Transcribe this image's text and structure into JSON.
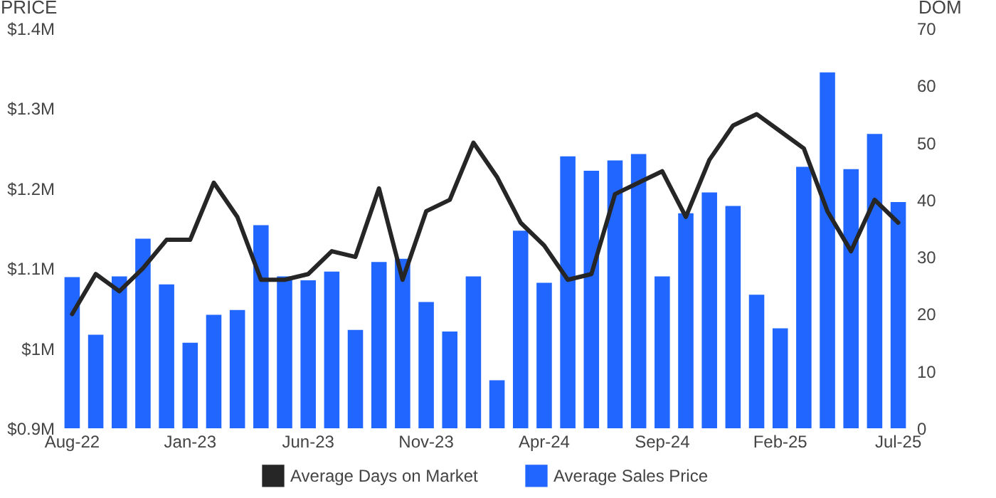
{
  "chart_data": {
    "type": "bar",
    "ylabel": "PRICE",
    "y2label": "DOM",
    "categories": [
      "Aug-22",
      null,
      null,
      null,
      null,
      "Jan-23",
      null,
      null,
      null,
      null,
      "Jun-23",
      null,
      null,
      null,
      null,
      "Nov-23",
      null,
      null,
      null,
      null,
      "Apr-24",
      null,
      null,
      null,
      null,
      "Sep-24",
      null,
      null,
      null,
      null,
      "Feb-25",
      null,
      null,
      null,
      null,
      "Jul-25"
    ],
    "series": [
      {
        "name": "Average Days on Market",
        "type": "line",
        "axis": "y2",
        "color": "#262626",
        "values": [
          20,
          27,
          24,
          28,
          33,
          33,
          43,
          37,
          26,
          26,
          27,
          31,
          30,
          42,
          26,
          38,
          40,
          50,
          44,
          36,
          32,
          26,
          27,
          41,
          43,
          45,
          37,
          47,
          53,
          55,
          52,
          49,
          38,
          31,
          40,
          36
        ]
      },
      {
        "name": "Average Sales Price",
        "type": "bar",
        "color": "#2066ff",
        "values": [
          1.089,
          1.017,
          1.09,
          1.137,
          1.08,
          1.007,
          1.042,
          1.048,
          1.154,
          1.09,
          1.085,
          1.096,
          1.023,
          1.108,
          1.112,
          1.058,
          1.021,
          1.09,
          0.96,
          1.147,
          1.082,
          1.24,
          1.222,
          1.235,
          1.243,
          1.09,
          1.169,
          1.195,
          1.178,
          1.067,
          1.025,
          1.227,
          1.345,
          1.224,
          1.268,
          1.183
        ]
      }
    ],
    "ylim": [
      0.9,
      1.4
    ],
    "yticks": [
      {
        "value": 0.9,
        "label": "$0.9M"
      },
      {
        "value": 1.0,
        "label": "$1M"
      },
      {
        "value": 1.1,
        "label": "$1.1M"
      },
      {
        "value": 1.2,
        "label": "$1.2M"
      },
      {
        "value": 1.3,
        "label": "$1.3M"
      },
      {
        "value": 1.4,
        "label": "$1.4M"
      }
    ],
    "y2lim": [
      0,
      70
    ],
    "y2ticks": [
      0,
      10,
      20,
      30,
      40,
      50,
      60,
      70
    ],
    "legend": "bottom",
    "marker": "none"
  }
}
